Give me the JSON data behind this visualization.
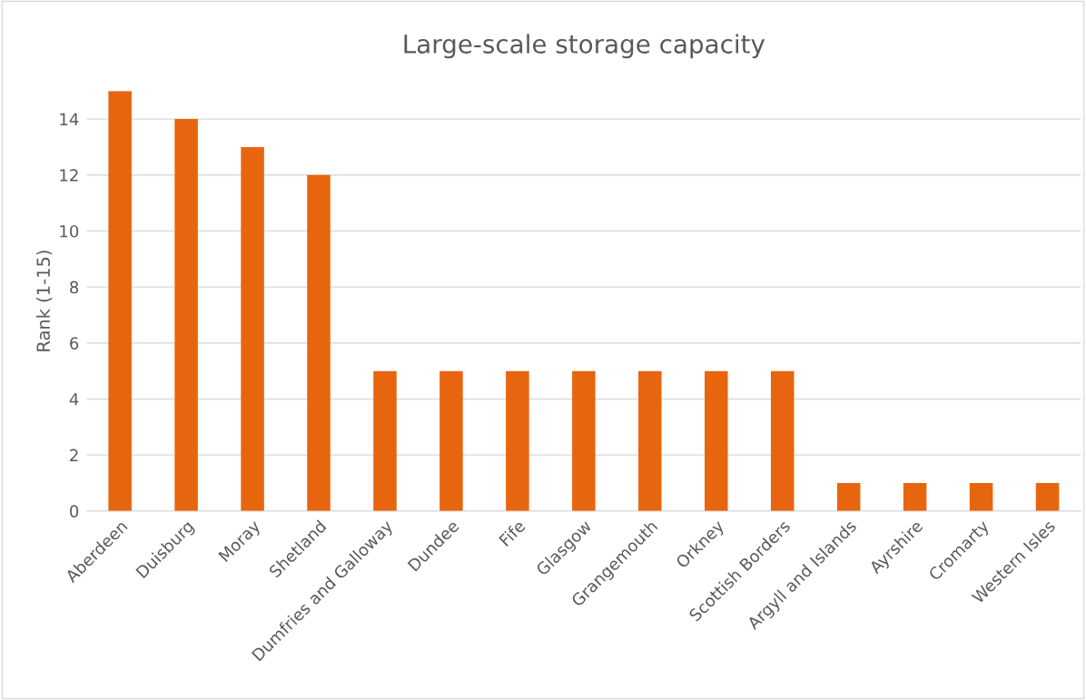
{
  "chart_data": {
    "type": "bar",
    "title": "Large-scale storage capacity",
    "ylabel": "Rank (1-15)",
    "categories": [
      "Aberdeen",
      "Duisburg",
      "Moray",
      "Shetland",
      "Dumfries and Galloway",
      "Dundee",
      "Fife",
      "Glasgow",
      "Grangemouth",
      "Orkney",
      "Scottish Borders",
      "Argyll and Islands",
      "Ayrshire",
      "Cromarty",
      "Western Isles"
    ],
    "values": [
      15,
      14,
      13,
      12,
      5,
      5,
      5,
      5,
      5,
      5,
      5,
      1,
      1,
      1,
      1
    ],
    "color": "#e8650f",
    "ylim": [
      0,
      15
    ],
    "yticks": [
      0,
      2,
      4,
      6,
      8,
      10,
      12,
      14
    ],
    "grid": "y",
    "legend": false
  }
}
